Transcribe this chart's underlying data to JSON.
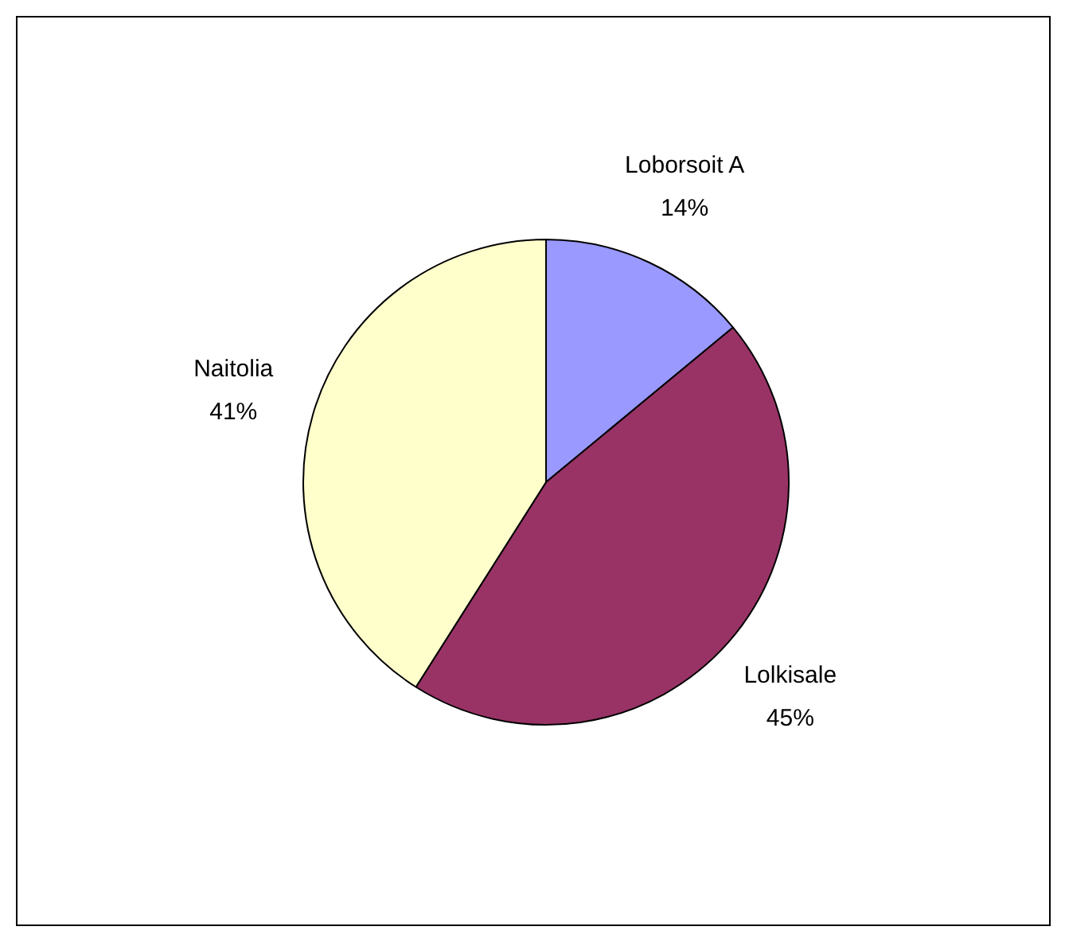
{
  "chart_data": {
    "type": "pie",
    "categories": [
      "Loborsoit A",
      "Lolkisale",
      "Naitolia"
    ],
    "values": [
      14,
      45,
      41
    ],
    "colors": [
      "#9999ff",
      "#993366",
      "#ffffcc"
    ],
    "value_labels": [
      "14%",
      "45%",
      "41%"
    ],
    "legend": false
  }
}
